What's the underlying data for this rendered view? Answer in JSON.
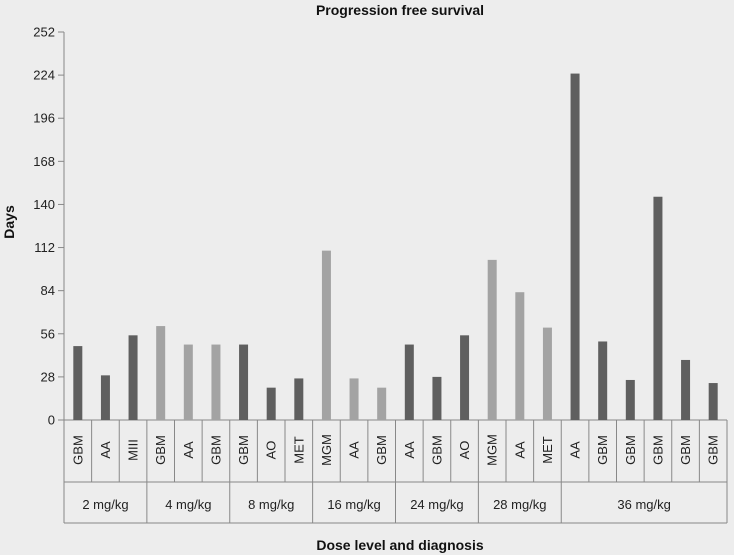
{
  "chart_data": {
    "type": "bar",
    "title": "Progression free survival",
    "xlabel": "Dose level and diagnosis",
    "ylabel": "Days",
    "ylim": [
      0,
      252
    ],
    "yticks": [
      0,
      28,
      56,
      84,
      112,
      140,
      168,
      196,
      224,
      252
    ],
    "grid": false,
    "categories": [
      "GBM",
      "AA",
      "MIII",
      "GBM",
      "AA",
      "GBM",
      "GBM",
      "AO",
      "MET",
      "MGM",
      "AA",
      "GBM",
      "AA",
      "GBM",
      "AO",
      "MGM",
      "AA",
      "MET",
      "AA",
      "GBM",
      "GBM",
      "GBM",
      "GBM",
      "GBM"
    ],
    "values": [
      48,
      29,
      55,
      61,
      49,
      49,
      49,
      21,
      27,
      110,
      27,
      21,
      49,
      28,
      55,
      104,
      83,
      60,
      225,
      51,
      26,
      145,
      39,
      24
    ],
    "groups": [
      {
        "label": "2 mg/kg",
        "count": 3
      },
      {
        "label": "4 mg/kg",
        "count": 3
      },
      {
        "label": "8 mg/kg",
        "count": 3
      },
      {
        "label": "16 mg/kg",
        "count": 3
      },
      {
        "label": "24 mg/kg",
        "count": 3
      },
      {
        "label": "28 mg/kg",
        "count": 3
      },
      {
        "label": "36 mg/kg",
        "count": 6
      }
    ],
    "bar_colors": [
      "#5f5f5f",
      "#5f5f5f",
      "#5f5f5f",
      "#a3a3a3",
      "#a3a3a3",
      "#a3a3a3",
      "#5f5f5f",
      "#5f5f5f",
      "#5f5f5f",
      "#a3a3a3",
      "#a3a3a3",
      "#a3a3a3",
      "#5f5f5f",
      "#5f5f5f",
      "#5f5f5f",
      "#a3a3a3",
      "#a3a3a3",
      "#a3a3a3",
      "#5f5f5f",
      "#5f5f5f",
      "#5f5f5f",
      "#5f5f5f",
      "#5f5f5f",
      "#5f5f5f"
    ]
  }
}
